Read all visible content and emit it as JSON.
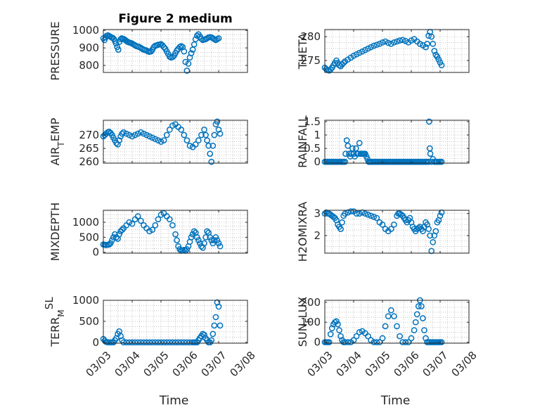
{
  "colors": {
    "marker": "#0072BD",
    "axis": "#262626",
    "grid": "#b0b0b0",
    "plot_bg": "#ffffff"
  },
  "chart_data": [
    {
      "panel": "pressure",
      "type": "scatter",
      "title": "Figure 2 medium",
      "ylabel": "PRESSURE",
      "ylabel_parts": [
        {
          "t": "PRESSURE",
          "s": "n"
        }
      ],
      "xlim": [
        0,
        5
      ],
      "ylim": [
        760,
        1005
      ],
      "yticks": [
        800,
        900,
        1000
      ],
      "ytick_labels": [
        "800",
        "900",
        "1000"
      ],
      "xticks": [
        0,
        1,
        2,
        3,
        4,
        5
      ],
      "xtick_labels": [],
      "grid": "dotted",
      "marker": "circle",
      "x": [
        0.0,
        0.04,
        0.08,
        0.12,
        0.16,
        0.2,
        0.24,
        0.28,
        0.32,
        0.36,
        0.4,
        0.44,
        0.48,
        0.52,
        0.56,
        0.6,
        0.64,
        0.68,
        0.72,
        0.76,
        0.8,
        0.84,
        0.88,
        0.92,
        0.96,
        1.0,
        1.05,
        1.1,
        1.15,
        1.2,
        1.25,
        1.3,
        1.35,
        1.4,
        1.45,
        1.5,
        1.55,
        1.6,
        1.65,
        1.7,
        1.75,
        1.8,
        1.85,
        1.9,
        1.95,
        2.0,
        2.05,
        2.1,
        2.15,
        2.2,
        2.25,
        2.3,
        2.35,
        2.4,
        2.45,
        2.5,
        2.55,
        2.6,
        2.65,
        2.7,
        2.75,
        2.8,
        2.85,
        2.9,
        2.95,
        3.0,
        3.05,
        3.1,
        3.15,
        3.2,
        3.25,
        3.3,
        3.35,
        3.4,
        3.45,
        3.5,
        3.55,
        3.6,
        3.65,
        3.7,
        3.75,
        3.8,
        3.85,
        3.9,
        3.95,
        4.0
      ],
      "y": [
        955,
        945,
        960,
        970,
        972,
        968,
        965,
        960,
        958,
        952,
        940,
        925,
        905,
        890,
        935,
        950,
        955,
        952,
        950,
        945,
        940,
        935,
        932,
        930,
        928,
        925,
        920,
        915,
        910,
        908,
        905,
        900,
        895,
        890,
        888,
        885,
        880,
        878,
        880,
        890,
        905,
        912,
        915,
        918,
        920,
        922,
        915,
        905,
        895,
        880,
        865,
        850,
        845,
        848,
        855,
        870,
        885,
        895,
        905,
        910,
        905,
        880,
        820,
        770,
        810,
        845,
        870,
        890,
        920,
        950,
        970,
        978,
        965,
        952,
        945,
        948,
        950,
        955,
        960,
        962,
        960,
        955,
        950,
        945,
        950,
        955
      ]
    },
    {
      "panel": "theta",
      "type": "scatter",
      "title": "",
      "ylabel": "THETA",
      "ylabel_parts": [
        {
          "t": "THETA",
          "s": "n"
        }
      ],
      "xlim": [
        0,
        5
      ],
      "ylim": [
        272.5,
        281.5
      ],
      "yticks": [
        275,
        280
      ],
      "ytick_labels": [
        "275",
        "280"
      ],
      "xticks": [
        0,
        1,
        2,
        3,
        4,
        5
      ],
      "xtick_labels": [],
      "grid": "dotted",
      "marker": "circle",
      "x": [
        0.0,
        0.05,
        0.1,
        0.15,
        0.2,
        0.25,
        0.3,
        0.35,
        0.4,
        0.45,
        0.5,
        0.55,
        0.6,
        0.65,
        0.7,
        0.8,
        0.9,
        1.0,
        1.1,
        1.2,
        1.3,
        1.4,
        1.5,
        1.6,
        1.7,
        1.8,
        1.9,
        2.0,
        2.1,
        2.2,
        2.3,
        2.4,
        2.5,
        2.6,
        2.7,
        2.8,
        2.9,
        3.0,
        3.1,
        3.2,
        3.3,
        3.4,
        3.5,
        3.55,
        3.6,
        3.65,
        3.7,
        3.75,
        3.8,
        3.85,
        3.9,
        3.95,
        4.0,
        4.05
      ],
      "y": [
        273.5,
        273.2,
        273.0,
        272.9,
        273.1,
        273.5,
        274.0,
        274.5,
        275.0,
        274.5,
        274.0,
        273.8,
        274.2,
        274.5,
        274.8,
        275.2,
        275.6,
        276.0,
        276.3,
        276.6,
        276.9,
        277.2,
        277.5,
        277.8,
        278.1,
        278.3,
        278.5,
        278.8,
        279.0,
        278.7,
        278.5,
        278.8,
        279.0,
        279.2,
        279.3,
        279.1,
        278.8,
        279.2,
        279.5,
        279.0,
        278.5,
        278.2,
        277.8,
        278.5,
        280.2,
        281.0,
        280.0,
        278.5,
        277.0,
        276.2,
        275.8,
        275.2,
        274.6,
        274.0
      ]
    },
    {
      "panel": "air_temp",
      "type": "scatter",
      "title": "",
      "ylabel": "AIR_TEMP",
      "ylabel_parts": [
        {
          "t": "AIR",
          "s": "n"
        },
        {
          "t": "T",
          "s": "sub"
        },
        {
          "t": "EMP",
          "s": "n"
        }
      ],
      "xlim": [
        0,
        5
      ],
      "ylim": [
        259.5,
        275.5
      ],
      "yticks": [
        260,
        265,
        270
      ],
      "ytick_labels": [
        "260",
        "265",
        "270"
      ],
      "xticks": [
        0,
        1,
        2,
        3,
        4,
        5
      ],
      "xtick_labels": [],
      "grid": "dotted",
      "marker": "circle",
      "x": [
        0.0,
        0.05,
        0.1,
        0.15,
        0.2,
        0.25,
        0.3,
        0.35,
        0.4,
        0.45,
        0.5,
        0.55,
        0.6,
        0.65,
        0.7,
        0.8,
        0.9,
        1.0,
        1.1,
        1.2,
        1.3,
        1.4,
        1.5,
        1.6,
        1.7,
        1.8,
        1.9,
        2.0,
        2.1,
        2.2,
        2.3,
        2.4,
        2.5,
        2.6,
        2.7,
        2.8,
        2.9,
        3.0,
        3.1,
        3.2,
        3.3,
        3.4,
        3.5,
        3.55,
        3.6,
        3.65,
        3.7,
        3.75,
        3.8,
        3.85,
        3.9,
        3.95,
        4.0,
        4.05
      ],
      "y": [
        269.5,
        270.0,
        270.5,
        271.0,
        271.2,
        270.8,
        270.0,
        269.0,
        268.0,
        267.0,
        266.5,
        268.0,
        269.5,
        270.5,
        271.0,
        270.5,
        270.0,
        269.5,
        270.0,
        270.5,
        271.0,
        270.5,
        270.0,
        269.5,
        269.0,
        268.5,
        268.0,
        267.5,
        268.0,
        270.0,
        272.0,
        273.5,
        274.0,
        273.0,
        272.0,
        270.0,
        268.0,
        266.0,
        265.5,
        266.5,
        268.0,
        270.0,
        272.0,
        270.0,
        268.0,
        266.0,
        263.0,
        260.0,
        266.0,
        270.0,
        274.0,
        275.0,
        272.0,
        270.5
      ]
    },
    {
      "panel": "rainfall",
      "type": "scatter",
      "title": "",
      "ylabel": "RAINFALL",
      "ylabel_parts": [
        {
          "t": "RAINFALL",
          "s": "n"
        }
      ],
      "xlim": [
        0,
        5
      ],
      "ylim": [
        -0.05,
        1.55
      ],
      "yticks": [
        0,
        0.5,
        1,
        1.5
      ],
      "ytick_labels": [
        "0",
        "0.5",
        "1",
        "1.5"
      ],
      "xticks": [
        0,
        1,
        2,
        3,
        4,
        5
      ],
      "xtick_labels": [],
      "grid": "dotted",
      "marker": "circle",
      "x": [
        0.0,
        0.05,
        0.1,
        0.15,
        0.2,
        0.25,
        0.3,
        0.35,
        0.4,
        0.45,
        0.5,
        0.55,
        0.6,
        0.65,
        0.7,
        0.72,
        0.76,
        0.8,
        0.84,
        0.88,
        0.92,
        0.96,
        1.0,
        1.04,
        1.08,
        1.12,
        1.16,
        1.2,
        1.24,
        1.28,
        1.32,
        1.36,
        1.4,
        1.44,
        1.48,
        1.52,
        1.56,
        1.6,
        1.65,
        1.7,
        1.75,
        1.8,
        1.85,
        1.9,
        1.95,
        2.0,
        2.05,
        2.1,
        2.15,
        2.2,
        2.25,
        2.3,
        2.35,
        2.4,
        2.45,
        2.5,
        2.55,
        2.6,
        2.65,
        2.7,
        2.75,
        2.8,
        2.85,
        2.9,
        2.95,
        3.0,
        3.05,
        3.1,
        3.15,
        3.2,
        3.25,
        3.3,
        3.35,
        3.4,
        3.45,
        3.5,
        3.55,
        3.6,
        3.62,
        3.64,
        3.66,
        3.7,
        3.75,
        3.8,
        3.85,
        3.9,
        3.95,
        4.0,
        4.05
      ],
      "y": [
        0,
        0,
        0,
        0,
        0,
        0,
        0,
        0,
        0,
        0,
        0,
        0,
        0,
        0,
        0,
        0.3,
        0.8,
        0.6,
        0.3,
        0.2,
        0.3,
        0.5,
        0.3,
        0.2,
        0.5,
        0.3,
        0.3,
        0.7,
        0.3,
        0.3,
        0.3,
        0.3,
        0.3,
        0.2,
        0.1,
        0,
        0,
        0,
        0,
        0,
        0,
        0,
        0,
        0,
        0,
        0,
        0,
        0,
        0,
        0,
        0,
        0,
        0,
        0,
        0,
        0,
        0,
        0,
        0,
        0,
        0,
        0,
        0,
        0,
        0,
        0,
        0,
        0,
        0,
        0,
        0,
        0,
        0,
        0,
        0,
        0,
        0,
        0,
        1.5,
        0.5,
        0.3,
        0,
        0.1,
        0,
        0,
        0,
        0,
        0,
        0
      ]
    },
    {
      "panel": "mixdepth",
      "type": "scatter",
      "title": "",
      "ylabel": "MIXDEPTH",
      "ylabel_parts": [
        {
          "t": "MIXDEPTH",
          "s": "n"
        }
      ],
      "xlim": [
        0,
        5
      ],
      "ylim": [
        -30,
        1400
      ],
      "yticks": [
        0,
        500,
        1000
      ],
      "ytick_labels": [
        "0",
        "500",
        "1000"
      ],
      "xticks": [
        0,
        1,
        2,
        3,
        4,
        5
      ],
      "xtick_labels": [],
      "grid": "dotted",
      "marker": "circle",
      "x": [
        0.0,
        0.05,
        0.1,
        0.15,
        0.2,
        0.25,
        0.3,
        0.35,
        0.4,
        0.45,
        0.5,
        0.55,
        0.6,
        0.65,
        0.7,
        0.8,
        0.9,
        1.0,
        1.1,
        1.2,
        1.3,
        1.4,
        1.5,
        1.6,
        1.7,
        1.8,
        1.9,
        2.0,
        2.1,
        2.2,
        2.3,
        2.4,
        2.5,
        2.55,
        2.6,
        2.65,
        2.7,
        2.75,
        2.8,
        2.85,
        2.9,
        2.95,
        3.0,
        3.05,
        3.1,
        3.15,
        3.2,
        3.25,
        3.3,
        3.35,
        3.4,
        3.45,
        3.5,
        3.55,
        3.6,
        3.65,
        3.7,
        3.75,
        3.8,
        3.85,
        3.9,
        3.95,
        4.0,
        4.05
      ],
      "y": [
        260,
        250,
        240,
        250,
        260,
        300,
        400,
        500,
        600,
        500,
        450,
        600,
        700,
        750,
        800,
        900,
        1000,
        950,
        1100,
        1200,
        1050,
        900,
        800,
        700,
        750,
        900,
        1100,
        1250,
        1300,
        1200,
        1100,
        900,
        600,
        400,
        200,
        100,
        50,
        60,
        80,
        50,
        100,
        200,
        350,
        500,
        600,
        700,
        650,
        500,
        400,
        300,
        200,
        150,
        300,
        500,
        700,
        650,
        500,
        400,
        300,
        400,
        500,
        400,
        300,
        200
      ]
    },
    {
      "panel": "h2omixra",
      "type": "scatter",
      "title": "",
      "ylabel": "H2OMIXRA",
      "ylabel_parts": [
        {
          "t": "H2OMIXRA",
          "s": "n"
        }
      ],
      "xlim": [
        0,
        5
      ],
      "ylim": [
        1.2,
        3.15
      ],
      "yticks": [
        2,
        3
      ],
      "ytick_labels": [
        "2",
        "3"
      ],
      "xticks": [
        0,
        1,
        2,
        3,
        4,
        5
      ],
      "xtick_labels": [],
      "grid": "dotted",
      "marker": "circle",
      "x": [
        0.0,
        0.05,
        0.1,
        0.15,
        0.2,
        0.25,
        0.3,
        0.35,
        0.4,
        0.45,
        0.5,
        0.55,
        0.6,
        0.65,
        0.7,
        0.8,
        0.9,
        1.0,
        1.1,
        1.2,
        1.3,
        1.4,
        1.5,
        1.6,
        1.7,
        1.8,
        1.9,
        2.0,
        2.1,
        2.2,
        2.3,
        2.4,
        2.5,
        2.55,
        2.6,
        2.65,
        2.7,
        2.75,
        2.8,
        2.85,
        2.9,
        2.95,
        3.0,
        3.05,
        3.1,
        3.15,
        3.2,
        3.25,
        3.3,
        3.35,
        3.4,
        3.45,
        3.5,
        3.55,
        3.6,
        3.65,
        3.7,
        3.75,
        3.8,
        3.85,
        3.9,
        3.95,
        4.0,
        4.05
      ],
      "y": [
        3.0,
        3.05,
        3.0,
        3.0,
        2.95,
        2.9,
        2.85,
        2.8,
        2.7,
        2.5,
        2.4,
        2.3,
        2.6,
        2.9,
        3.0,
        3.05,
        3.1,
        3.1,
        3.0,
        3.0,
        3.05,
        3.0,
        2.95,
        2.9,
        2.85,
        2.8,
        2.6,
        2.5,
        2.3,
        2.2,
        2.3,
        2.5,
        2.9,
        3.0,
        3.0,
        2.95,
        2.9,
        2.8,
        2.7,
        2.6,
        2.7,
        2.8,
        2.6,
        2.4,
        2.3,
        2.2,
        2.3,
        2.35,
        2.4,
        2.3,
        2.2,
        2.4,
        2.6,
        2.5,
        2.3,
        2.0,
        1.3,
        1.7,
        2.0,
        2.2,
        2.6,
        2.7,
        2.9,
        3.05
      ]
    },
    {
      "panel": "terr_msl",
      "type": "scatter",
      "title": "",
      "ylabel": "TERR_MSL",
      "ylabel_parts": [
        {
          "t": "TERR",
          "s": "n"
        },
        {
          "t": "M",
          "s": "sub"
        },
        {
          "t": "SL",
          "s": "sup"
        }
      ],
      "xlim": [
        0,
        5
      ],
      "ylim": [
        -20,
        1000
      ],
      "yticks": [
        0,
        500,
        1000
      ],
      "ytick_labels": [
        "0",
        "500",
        "1000"
      ],
      "xticks": [
        0,
        1,
        2,
        3,
        4,
        5
      ],
      "xtick_labels": [
        "03/03",
        "03/04",
        "03/05",
        "03/06",
        "03/07",
        "03/08"
      ],
      "xlabel": "Time",
      "grid": "dotted",
      "marker": "circle",
      "x": [
        0.0,
        0.05,
        0.1,
        0.15,
        0.2,
        0.25,
        0.3,
        0.35,
        0.4,
        0.45,
        0.5,
        0.55,
        0.6,
        0.65,
        0.7,
        0.8,
        0.9,
        1.0,
        1.1,
        1.2,
        1.3,
        1.4,
        1.5,
        1.6,
        1.7,
        1.8,
        1.9,
        2.0,
        2.1,
        2.2,
        2.3,
        2.4,
        2.5,
        2.6,
        2.7,
        2.8,
        2.9,
        3.0,
        3.1,
        3.15,
        3.2,
        3.25,
        3.3,
        3.35,
        3.4,
        3.45,
        3.5,
        3.55,
        3.6,
        3.65,
        3.7,
        3.75,
        3.8,
        3.85,
        3.9,
        3.95,
        4.0,
        4.05
      ],
      "y": [
        80,
        40,
        10,
        0,
        0,
        0,
        0,
        0,
        50,
        100,
        200,
        260,
        150,
        50,
        0,
        0,
        0,
        0,
        0,
        0,
        0,
        0,
        0,
        0,
        0,
        0,
        0,
        0,
        0,
        0,
        0,
        0,
        0,
        0,
        0,
        0,
        0,
        0,
        0,
        0,
        0,
        0,
        50,
        100,
        150,
        200,
        180,
        100,
        50,
        0,
        0,
        50,
        200,
        400,
        600,
        950,
        850,
        400
      ]
    },
    {
      "panel": "sun_flux",
      "type": "scatter",
      "title": "",
      "ylabel": "SUN_FLUX",
      "ylabel_parts": [
        {
          "t": "SUN",
          "s": "n"
        },
        {
          "t": "F",
          "s": "sub"
        },
        {
          "t": "LUX",
          "s": "n"
        }
      ],
      "xlim": [
        0,
        5
      ],
      "ylim": [
        -5,
        210
      ],
      "yticks": [
        0,
        100,
        200
      ],
      "ytick_labels": [
        "0",
        "100",
        "200"
      ],
      "xticks": [
        0,
        1,
        2,
        3,
        4,
        5
      ],
      "xtick_labels": [
        "03/03",
        "03/04",
        "03/05",
        "03/06",
        "03/07",
        "03/08"
      ],
      "xlabel": "Time",
      "grid": "dotted",
      "marker": "circle",
      "x": [
        0.0,
        0.05,
        0.1,
        0.15,
        0.2,
        0.25,
        0.3,
        0.35,
        0.4,
        0.45,
        0.5,
        0.55,
        0.6,
        0.65,
        0.7,
        0.8,
        0.9,
        1.0,
        1.1,
        1.2,
        1.3,
        1.4,
        1.5,
        1.6,
        1.7,
        1.8,
        1.9,
        2.0,
        2.1,
        2.2,
        2.3,
        2.4,
        2.5,
        2.6,
        2.7,
        2.8,
        2.9,
        3.0,
        3.1,
        3.15,
        3.2,
        3.25,
        3.3,
        3.35,
        3.4,
        3.45,
        3.5,
        3.55,
        3.6,
        3.65,
        3.7,
        3.75,
        3.8,
        3.85,
        3.9,
        3.95,
        4.0,
        4.05
      ],
      "y": [
        0,
        0,
        0,
        0,
        40,
        70,
        90,
        100,
        105,
        90,
        60,
        30,
        10,
        0,
        0,
        0,
        0,
        10,
        30,
        50,
        55,
        45,
        30,
        10,
        0,
        0,
        0,
        20,
        80,
        130,
        160,
        130,
        80,
        30,
        0,
        0,
        0,
        20,
        60,
        100,
        140,
        180,
        210,
        180,
        120,
        60,
        20,
        0,
        0,
        0,
        0,
        0,
        0,
        0,
        0,
        0,
        0,
        0
      ]
    }
  ]
}
